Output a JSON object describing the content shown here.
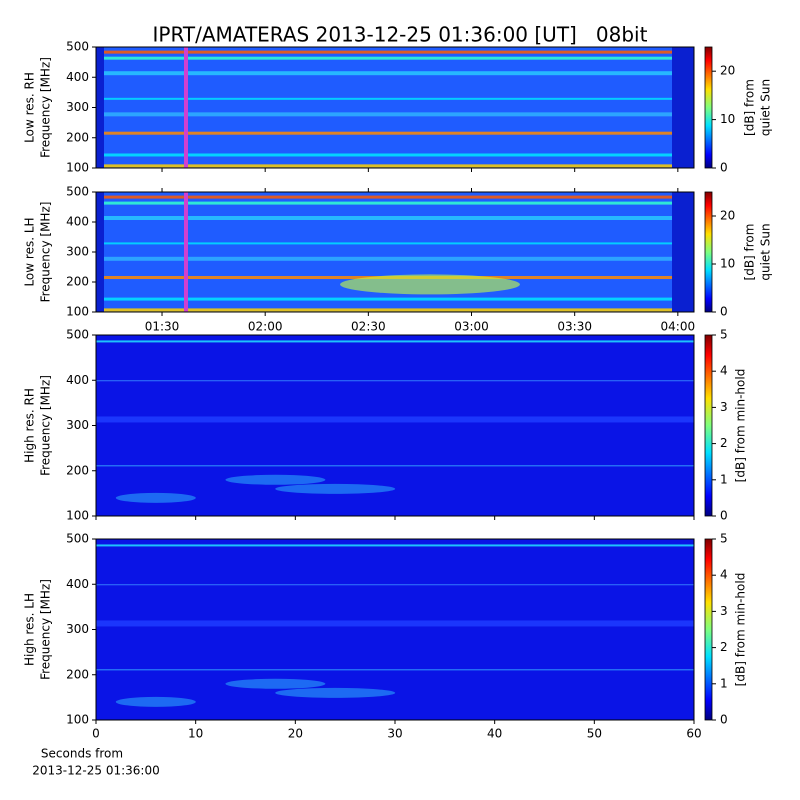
{
  "chart_data": [
    {
      "type": "spectrogram",
      "title": "IPRT/AMATERAS 2013-12-25 01:36:00 [UT]   08bit",
      "ylabel": [
        "Low res. RH",
        "Frequency [MHz]"
      ],
      "ylim": [
        100,
        500
      ],
      "yticks": [
        100,
        200,
        300,
        400,
        500
      ],
      "xlim": [
        70.8,
        244.7
      ],
      "clabel": [
        "[dB] from",
        "quiet Sun"
      ],
      "clim": [
        0,
        25
      ],
      "cticks": [
        0,
        10,
        20
      ]
    },
    {
      "type": "spectrogram",
      "ylabel": [
        "Low res. LH",
        "Frequency [MHz]"
      ],
      "ylim": [
        100,
        500
      ],
      "yticks": [
        100,
        200,
        300,
        400,
        500
      ],
      "xlim": [
        70.8,
        244.7
      ],
      "xticks": [
        {
          "value": 90,
          "label": "01:30"
        },
        {
          "value": 120,
          "label": "02:00"
        },
        {
          "value": 150,
          "label": "02:30"
        },
        {
          "value": 180,
          "label": "03:00"
        },
        {
          "value": 210,
          "label": "03:30"
        },
        {
          "value": 240,
          "label": "04:00"
        }
      ],
      "clabel": [
        "[dB] from",
        "quiet Sun"
      ],
      "clim": [
        0,
        25
      ],
      "cticks": [
        0,
        10,
        20
      ]
    },
    {
      "type": "spectrogram",
      "ylabel": [
        "High res. RH",
        "Frequency [MHz]"
      ],
      "ylim": [
        100,
        500
      ],
      "yticks": [
        100,
        200,
        300,
        400,
        500
      ],
      "xlim": [
        0,
        60
      ],
      "clabel": [
        "[dB] from min-hold"
      ],
      "clim": [
        0,
        5
      ],
      "cticks": [
        0,
        1,
        2,
        3,
        4,
        5
      ]
    },
    {
      "type": "spectrogram",
      "ylabel": [
        "High res. LH",
        "Frequency [MHz]"
      ],
      "ylim": [
        100,
        500
      ],
      "yticks": [
        100,
        200,
        300,
        400,
        500
      ],
      "xlim": [
        0,
        60
      ],
      "xticks": [
        0,
        10,
        20,
        30,
        40,
        50,
        60
      ],
      "xlabel": [
        "Seconds from",
        "2013-12-25 01:36:00"
      ],
      "clabel": [
        "[dB] from min-hold"
      ],
      "clim": [
        0,
        5
      ],
      "cticks": [
        0,
        1,
        2,
        3,
        4,
        5
      ]
    }
  ]
}
